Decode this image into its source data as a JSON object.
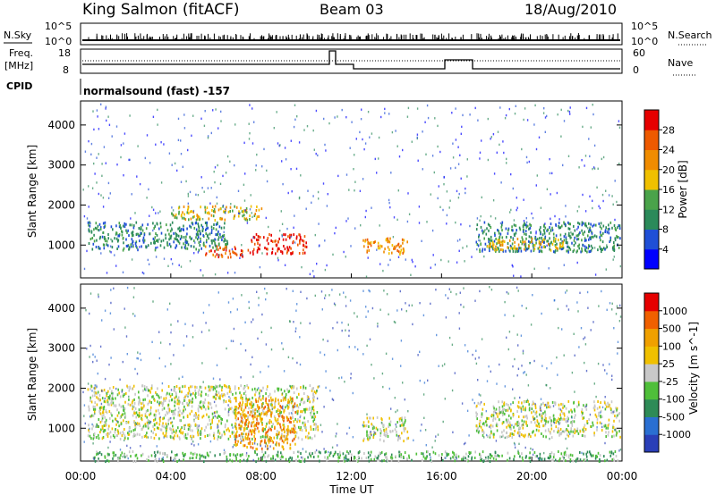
{
  "header": {
    "station": "King Salmon (fitACF)",
    "beam": "Beam 03",
    "date": "18/Aug/2010"
  },
  "panels_labels": {
    "nsky": "N.Sky",
    "nsky_hi": "10^5",
    "nsky_lo": "10^0",
    "nsky_hi_r": "10^5",
    "nsky_lo_r": "10^0",
    "nsearch": "N.Search",
    "freq": "Freq.",
    "freq_unit": "[MHz]",
    "freq_hi": "18",
    "freq_lo": "8",
    "nave_hi": "60",
    "nave_lo": "0",
    "nave": "Nave",
    "cpid": "CPID",
    "mode": "normalsound (fast) -157"
  },
  "colors": {
    "power": [
      "#0000ff",
      "#1f4fd6",
      "#2b8a5a",
      "#4aa34a",
      "#f0c000",
      "#f08c00",
      "#ee5a00",
      "#e60000"
    ],
    "velocity": [
      "#2a3fb8",
      "#2a6fd2",
      "#2e8b57",
      "#4fbf3a",
      "#c8c8c8",
      "#f0c000",
      "#f0a000",
      "#f06000",
      "#e60000"
    ]
  },
  "chart_data": [
    {
      "type": "heatmap",
      "title": "Power",
      "ylabel": "Slant Range [km]",
      "xlabel": "Time UT",
      "x_ticks": [
        "00:00",
        "04:00",
        "08:00",
        "12:00",
        "16:00",
        "20:00",
        "00:00"
      ],
      "y_ticks": [
        "1000",
        "2000",
        "3000",
        "4000"
      ],
      "ylim": [
        180,
        4600
      ],
      "colorbar_label": "Power [dB]",
      "colorbar_ticks": [
        "4",
        "8",
        "12",
        "16",
        "20",
        "24",
        "28"
      ],
      "scatter_regions": [
        {
          "t0": 0.3,
          "t1": 6.5,
          "r0": 900,
          "r1": 1600,
          "level": 2
        },
        {
          "t0": 4.0,
          "t1": 8.0,
          "r0": 1650,
          "r1": 2000,
          "level": 4
        },
        {
          "t0": 5.5,
          "t1": 7.5,
          "r0": 720,
          "r1": 1000,
          "level": 6
        },
        {
          "t0": 7.5,
          "t1": 10.0,
          "r0": 800,
          "r1": 1300,
          "level": 7
        },
        {
          "t0": 12.5,
          "t1": 14.5,
          "r0": 800,
          "r1": 1200,
          "level": 5
        },
        {
          "t0": 17.5,
          "t1": 23.9,
          "r0": 850,
          "r1": 1600,
          "level": 2
        },
        {
          "t0": 18.0,
          "t1": 21.5,
          "r0": 900,
          "r1": 1200,
          "level": 4
        }
      ]
    },
    {
      "type": "heatmap",
      "title": "Velocity",
      "ylabel": "Slant Range [km]",
      "xlabel": "Time UT",
      "x_ticks": [
        "00:00",
        "04:00",
        "08:00",
        "12:00",
        "16:00",
        "20:00",
        "00:00"
      ],
      "y_ticks": [
        "1000",
        "2000",
        "3000",
        "4000"
      ],
      "ylim": [
        180,
        4600
      ],
      "colorbar_label": "Velocity [m s^-1]",
      "colorbar_ticks": [
        "1000",
        "500",
        "100",
        "25",
        "-25",
        "-100",
        "-500",
        "-1000"
      ],
      "scatter_regions": [
        {
          "t0": 0.3,
          "t1": 10.5,
          "r0": 750,
          "r1": 2100,
          "level": 4
        },
        {
          "t0": 6.8,
          "t1": 9.5,
          "r0": 500,
          "r1": 1800,
          "level": 6
        },
        {
          "t0": 12.5,
          "t1": 14.5,
          "r0": 700,
          "r1": 1300,
          "level": 4
        },
        {
          "t0": 17.5,
          "t1": 23.9,
          "r0": 800,
          "r1": 1700,
          "level": 4
        },
        {
          "t0": 0.5,
          "t1": 23.9,
          "r0": 200,
          "r1": 450,
          "level": 3
        }
      ]
    }
  ]
}
